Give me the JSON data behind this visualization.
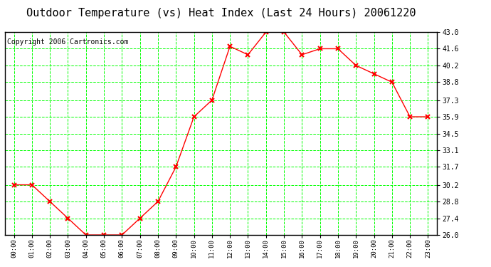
{
  "title": "Outdoor Temperature (vs) Heat Index (Last 24 Hours) 20061220",
  "copyright": "Copyright 2006 Cartronics.com",
  "x_labels": [
    "00:00",
    "01:00",
    "02:00",
    "03:00",
    "04:00",
    "05:00",
    "06:00",
    "07:00",
    "08:00",
    "09:00",
    "10:00",
    "11:00",
    "12:00",
    "13:00",
    "14:00",
    "15:00",
    "16:00",
    "17:00",
    "18:00",
    "19:00",
    "20:00",
    "21:00",
    "22:00",
    "23:00"
  ],
  "y_values": [
    30.2,
    30.2,
    28.8,
    27.4,
    26.0,
    26.0,
    26.0,
    27.4,
    28.8,
    31.7,
    35.9,
    37.3,
    41.8,
    41.1,
    43.0,
    43.0,
    41.1,
    41.6,
    41.6,
    40.2,
    39.5,
    38.8,
    35.9,
    35.9
  ],
  "line_color": "#ff0000",
  "marker": "x",
  "marker_color": "#ff0000",
  "grid_color": "#00ff00",
  "background_color": "#ffffff",
  "plot_background": "#ffffff",
  "title_fontsize": 11,
  "copyright_fontsize": 7,
  "y_min": 26.0,
  "y_max": 43.0,
  "y_ticks": [
    26.0,
    27.4,
    28.8,
    30.2,
    31.7,
    33.1,
    34.5,
    35.9,
    37.3,
    38.8,
    40.2,
    41.6,
    43.0
  ]
}
